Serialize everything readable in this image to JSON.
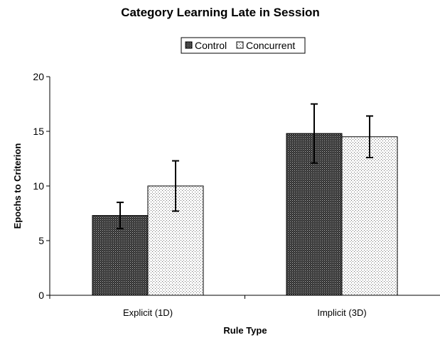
{
  "chart_data": {
    "type": "bar",
    "title": "Category Learning Late in Session",
    "xlabel": "Rule Type",
    "ylabel": "Epochs to Criterion",
    "categories": [
      "Explicit (1D)",
      "Implicit (3D)"
    ],
    "ylim": [
      0,
      20
    ],
    "yticks": [
      0,
      5,
      10,
      15,
      20
    ],
    "grid": false,
    "legend_position": "top",
    "series": [
      {
        "name": "Control",
        "values": [
          7.3,
          14.8
        ],
        "errors": [
          1.2,
          2.7
        ],
        "pattern": "dense-dots",
        "color": "#555555"
      },
      {
        "name": "Concurrent",
        "values": [
          10.0,
          14.5
        ],
        "errors": [
          2.3,
          1.9
        ],
        "pattern": "sparse-dots",
        "color": "#ffffff"
      }
    ]
  }
}
